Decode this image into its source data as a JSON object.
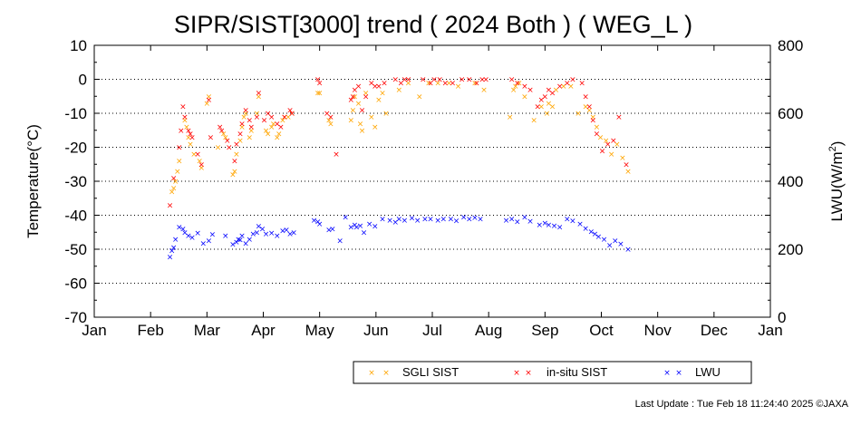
{
  "chart_data": {
    "type": "scatter",
    "title": "SIPR/SIST[3000] trend ( 2024 Both ) ( WEG_L )",
    "ylabel": "Temperature(°C)",
    "y2label_main": "LWU(W/m",
    "y2label_sup": "2",
    "y2label_end": ")",
    "ylim": [
      -70,
      10
    ],
    "y2lim": [
      0,
      800
    ],
    "yticks": [
      "10",
      "0",
      "-10",
      "-20",
      "-30",
      "-40",
      "-50",
      "-60",
      "-70"
    ],
    "y2ticks": [
      "800",
      "600",
      "400",
      "200",
      "0"
    ],
    "xticks": [
      "Jan",
      "Feb",
      "Mar",
      "Apr",
      "May",
      "Jun",
      "Jul",
      "Aug",
      "Sep",
      "Oct",
      "Nov",
      "Dec",
      "Jan"
    ],
    "grid": "dotted horizontal",
    "legend_position": "bottom-right",
    "series": [
      {
        "name": "SGLI SIST",
        "color": "#ffa500",
        "axis": "left",
        "points": [
          [
            42,
            -33
          ],
          [
            43,
            -32
          ],
          [
            44,
            -30
          ],
          [
            45,
            -27
          ],
          [
            46,
            -24
          ],
          [
            49,
            -12
          ],
          [
            50,
            -14
          ],
          [
            51,
            -17
          ],
          [
            52,
            -19
          ],
          [
            54,
            -22
          ],
          [
            57,
            -24
          ],
          [
            58,
            -26
          ],
          [
            61,
            -7
          ],
          [
            62,
            -5
          ],
          [
            67,
            -20
          ],
          [
            70,
            -16
          ],
          [
            71,
            -17
          ],
          [
            75,
            -28
          ],
          [
            76,
            -27
          ],
          [
            77,
            -22
          ],
          [
            79,
            -18
          ],
          [
            80,
            -14
          ],
          [
            81,
            -11
          ],
          [
            82,
            -10
          ],
          [
            84,
            -17
          ],
          [
            85,
            -15
          ],
          [
            88,
            -10
          ],
          [
            89,
            -5
          ],
          [
            93,
            -15
          ],
          [
            94,
            -16
          ],
          [
            96,
            -14
          ],
          [
            97,
            -13
          ],
          [
            99,
            -17
          ],
          [
            100,
            -16
          ],
          [
            102,
            -12
          ],
          [
            103,
            -11
          ],
          [
            105,
            -11
          ],
          [
            107,
            -10
          ],
          [
            121,
            -4
          ],
          [
            122,
            -4
          ],
          [
            127,
            -12
          ],
          [
            128,
            -13
          ],
          [
            139,
            -12
          ],
          [
            140,
            -9
          ],
          [
            141,
            -5
          ],
          [
            143,
            -7
          ],
          [
            144,
            -13
          ],
          [
            145,
            -15
          ],
          [
            147,
            -4
          ],
          [
            150,
            -11
          ],
          [
            152,
            -14
          ],
          [
            154,
            -6
          ],
          [
            156,
            -4
          ],
          [
            158,
            -10
          ],
          [
            165,
            -3
          ],
          [
            170,
            -1
          ],
          [
            176,
            -5
          ],
          [
            181,
            -1
          ],
          [
            186,
            -1
          ],
          [
            192,
            -1
          ],
          [
            197,
            -2
          ],
          [
            206,
            -1
          ],
          [
            211,
            -3
          ],
          [
            225,
            -11
          ],
          [
            227,
            -3
          ],
          [
            228,
            -2
          ],
          [
            230,
            -1
          ],
          [
            233,
            -5
          ],
          [
            238,
            -12
          ],
          [
            242,
            -8
          ],
          [
            245,
            -10
          ],
          [
            246,
            -7
          ],
          [
            248,
            -8
          ],
          [
            250,
            -3
          ],
          [
            254,
            -2
          ],
          [
            258,
            -2
          ],
          [
            262,
            -10
          ],
          [
            266,
            -8
          ],
          [
            268,
            -9
          ],
          [
            270,
            -11
          ],
          [
            272,
            -14
          ],
          [
            274,
            -17
          ],
          [
            277,
            -18
          ],
          [
            280,
            -22
          ],
          [
            283,
            -19
          ],
          [
            286,
            -23
          ],
          [
            289,
            -27
          ]
        ]
      },
      {
        "name": "in-situ SIST",
        "color": "#ff0000",
        "axis": "left",
        "points": [
          [
            41,
            -37
          ],
          [
            43,
            -29
          ],
          [
            46,
            -20
          ],
          [
            47,
            -15
          ],
          [
            48,
            -8
          ],
          [
            49,
            -11
          ],
          [
            51,
            -15
          ],
          [
            52,
            -16
          ],
          [
            53,
            -17
          ],
          [
            56,
            -22
          ],
          [
            58,
            -25
          ],
          [
            62,
            -6
          ],
          [
            63,
            -17
          ],
          [
            68,
            -14
          ],
          [
            69,
            -15
          ],
          [
            72,
            -18
          ],
          [
            73,
            -20
          ],
          [
            76,
            -24
          ],
          [
            77,
            -19
          ],
          [
            79,
            -16
          ],
          [
            80,
            -13
          ],
          [
            82,
            -9
          ],
          [
            84,
            -12
          ],
          [
            85,
            -14
          ],
          [
            88,
            -11
          ],
          [
            89,
            -4
          ],
          [
            92,
            -12
          ],
          [
            94,
            -10
          ],
          [
            96,
            -11
          ],
          [
            99,
            -13
          ],
          [
            101,
            -14
          ],
          [
            103,
            -11
          ],
          [
            106,
            -9
          ],
          [
            107,
            -10
          ],
          [
            121,
            0
          ],
          [
            122,
            -1
          ],
          [
            126,
            -10
          ],
          [
            128,
            -11
          ],
          [
            131,
            -22
          ],
          [
            139,
            -6
          ],
          [
            140,
            -5
          ],
          [
            141,
            -3
          ],
          [
            143,
            -2
          ],
          [
            145,
            -9
          ],
          [
            147,
            -5
          ],
          [
            150,
            -1
          ],
          [
            152,
            -2
          ],
          [
            154,
            -2
          ],
          [
            157,
            -1
          ],
          [
            163,
            0
          ],
          [
            166,
            -1
          ],
          [
            168,
            0
          ],
          [
            170,
            0
          ],
          [
            178,
            0
          ],
          [
            182,
            -1
          ],
          [
            184,
            0
          ],
          [
            187,
            0
          ],
          [
            190,
            -1
          ],
          [
            194,
            -1
          ],
          [
            199,
            0
          ],
          [
            203,
            0
          ],
          [
            207,
            -1
          ],
          [
            210,
            0
          ],
          [
            212,
            0
          ],
          [
            226,
            0
          ],
          [
            229,
            -1
          ],
          [
            233,
            -2
          ],
          [
            236,
            -3
          ],
          [
            240,
            -8
          ],
          [
            242,
            -6
          ],
          [
            244,
            -5
          ],
          [
            246,
            -3
          ],
          [
            248,
            -4
          ],
          [
            252,
            -2
          ],
          [
            256,
            -1
          ],
          [
            259,
            0
          ],
          [
            264,
            -1
          ],
          [
            266,
            -5
          ],
          [
            268,
            -8
          ],
          [
            270,
            -12
          ],
          [
            272,
            -16
          ],
          [
            275,
            -21
          ],
          [
            278,
            -19
          ],
          [
            281,
            -18
          ],
          [
            284,
            -11
          ],
          [
            288,
            -25
          ]
        ]
      },
      {
        "name": "LWU",
        "color": "#0000ff",
        "axis": "right",
        "points": [
          [
            41,
            178
          ],
          [
            42,
            196
          ],
          [
            43,
            205
          ],
          [
            44,
            230
          ],
          [
            46,
            265
          ],
          [
            48,
            260
          ],
          [
            49,
            250
          ],
          [
            51,
            240
          ],
          [
            53,
            235
          ],
          [
            56,
            248
          ],
          [
            59,
            218
          ],
          [
            62,
            225
          ],
          [
            64,
            244
          ],
          [
            71,
            240
          ],
          [
            75,
            215
          ],
          [
            77,
            222
          ],
          [
            78,
            230
          ],
          [
            79,
            228
          ],
          [
            80,
            240
          ],
          [
            82,
            218
          ],
          [
            84,
            230
          ],
          [
            86,
            245
          ],
          [
            88,
            250
          ],
          [
            89,
            268
          ],
          [
            91,
            260
          ],
          [
            93,
            245
          ],
          [
            96,
            248
          ],
          [
            99,
            240
          ],
          [
            102,
            255
          ],
          [
            104,
            257
          ],
          [
            106,
            245
          ],
          [
            108,
            250
          ],
          [
            119,
            285
          ],
          [
            121,
            282
          ],
          [
            122,
            275
          ],
          [
            127,
            258
          ],
          [
            129,
            260
          ],
          [
            133,
            225
          ],
          [
            136,
            295
          ],
          [
            139,
            265
          ],
          [
            141,
            272
          ],
          [
            142,
            265
          ],
          [
            144,
            270
          ],
          [
            146,
            250
          ],
          [
            149,
            275
          ],
          [
            152,
            268
          ],
          [
            156,
            290
          ],
          [
            160,
            285
          ],
          [
            163,
            280
          ],
          [
            165,
            290
          ],
          [
            168,
            285
          ],
          [
            172,
            292
          ],
          [
            175,
            286
          ],
          [
            179,
            290
          ],
          [
            182,
            290
          ],
          [
            186,
            286
          ],
          [
            189,
            290
          ],
          [
            193,
            290
          ],
          [
            196,
            284
          ],
          [
            200,
            295
          ],
          [
            203,
            289
          ],
          [
            206,
            293
          ],
          [
            209,
            290
          ],
          [
            223,
            286
          ],
          [
            226,
            290
          ],
          [
            229,
            281
          ],
          [
            233,
            295
          ],
          [
            236,
            283
          ],
          [
            241,
            272
          ],
          [
            244,
            278
          ],
          [
            246,
            272
          ],
          [
            249,
            270
          ],
          [
            252,
            265
          ],
          [
            256,
            290
          ],
          [
            259,
            284
          ],
          [
            263,
            275
          ],
          [
            266,
            262
          ],
          [
            269,
            252
          ],
          [
            271,
            245
          ],
          [
            273,
            238
          ],
          [
            276,
            230
          ],
          [
            279,
            212
          ],
          [
            282,
            226
          ],
          [
            285,
            216
          ],
          [
            289,
            200
          ]
        ]
      }
    ]
  },
  "legend": {
    "items": [
      {
        "label": "SGLI SIST",
        "color": "#ffa500"
      },
      {
        "label": "in-situ SIST",
        "color": "#ff0000"
      },
      {
        "label": "LWU",
        "color": "#0000ff"
      }
    ]
  },
  "footer": {
    "last_update": "Last Update : Tue Feb 18 11:24:40 2025  ©JAXA"
  }
}
